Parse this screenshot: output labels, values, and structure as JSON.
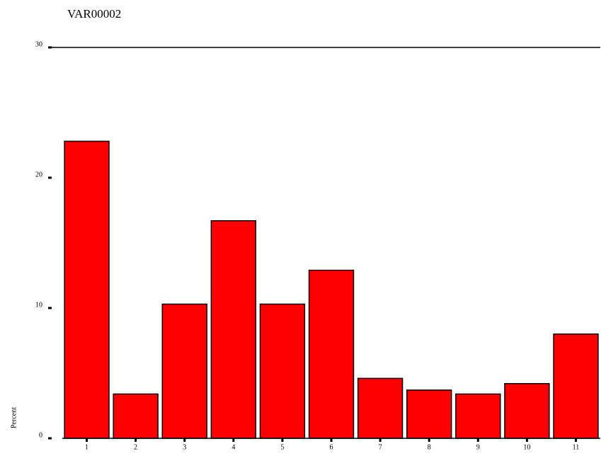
{
  "chart_data": {
    "type": "bar",
    "title": "VAR00002",
    "y_label": "Percent",
    "categories": [
      "1",
      "2",
      "3",
      "4",
      "5",
      "6",
      "7",
      "8",
      "9",
      "10",
      "11"
    ],
    "values": [
      22.8,
      3.4,
      10.3,
      16.7,
      10.3,
      12.9,
      4.6,
      3.7,
      3.4,
      4.2,
      8.0
    ],
    "color": "#ff0000",
    "ylim": [
      0,
      30
    ],
    "yticks": [
      0,
      10,
      20,
      30
    ]
  }
}
